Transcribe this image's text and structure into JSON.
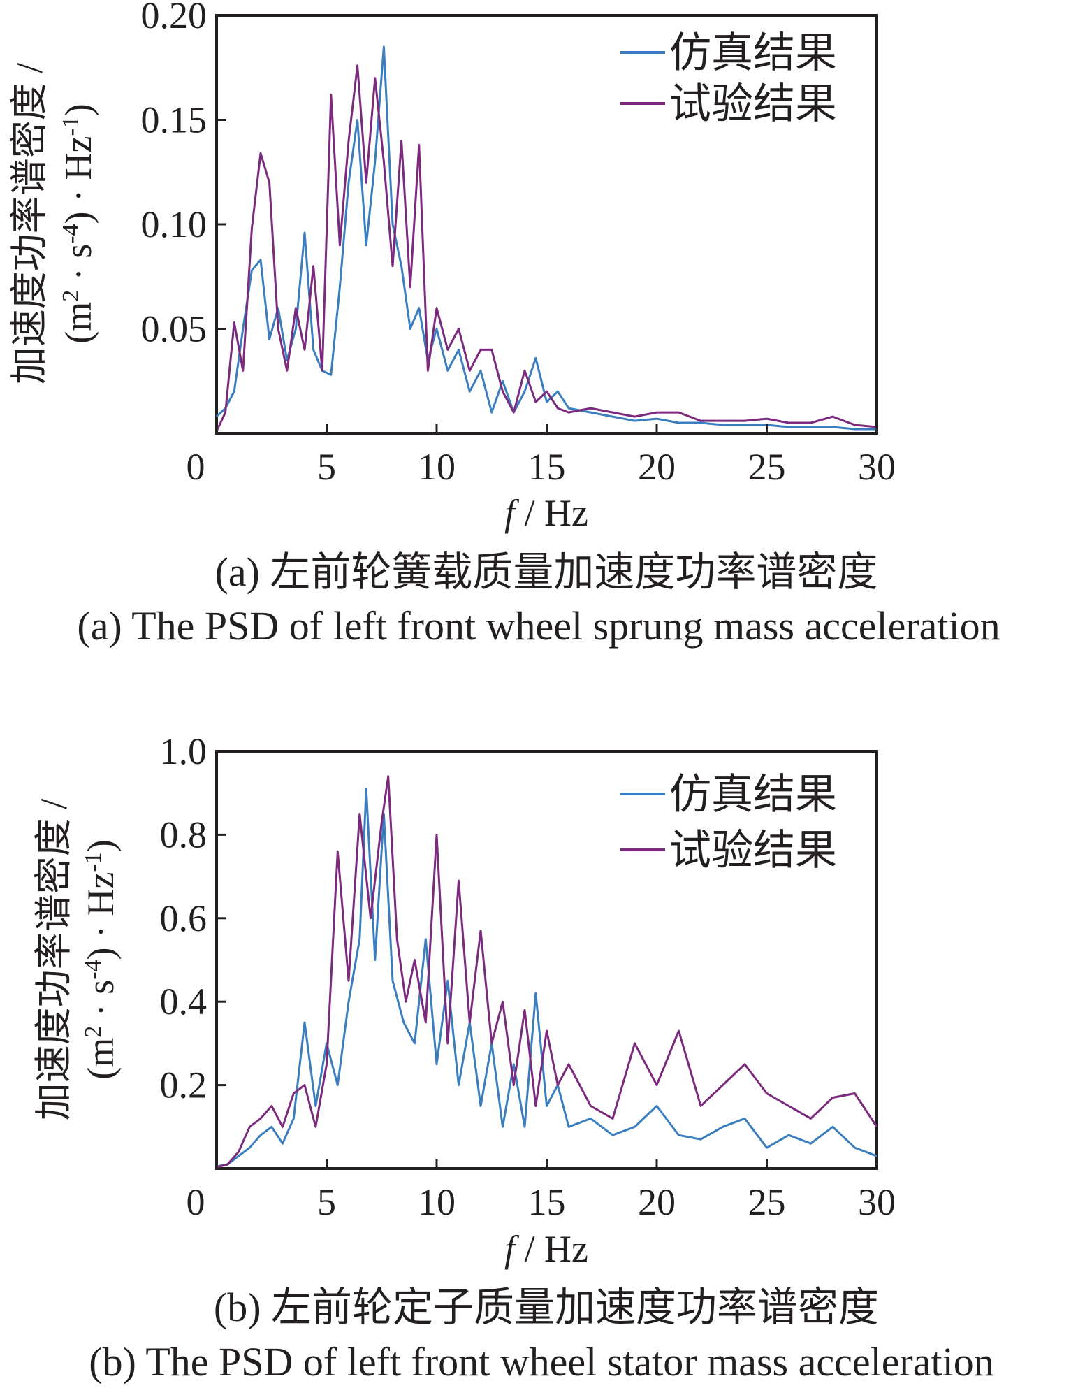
{
  "colors": {
    "simulation": "#3a7ebf",
    "experiment": "#7b2a7e",
    "axis": "#231f20"
  },
  "chart_data": [
    {
      "type": "line",
      "panel": "a",
      "xlabel_italic": "f",
      "xlabel_rest": " / Hz",
      "ylabel_line1": "加速度功率谱密度 /",
      "ylabel_line2_open": "(m",
      "ylabel_line2_exp1": "2",
      "ylabel_line2_mid": " · s",
      "ylabel_line2_exp2": "-4",
      "ylabel_line2_close": ") · Hz",
      "ylabel_line2_exp3": "-1",
      "ylabel_line2_end": ")",
      "xlim": [
        0,
        30
      ],
      "ylim": [
        0,
        0.2
      ],
      "xticks": [
        0,
        5,
        10,
        15,
        20,
        25,
        30
      ],
      "xtick_labels": [
        "0",
        "5",
        "10",
        "15",
        "20",
        "25",
        "30"
      ],
      "yticks": [
        0.05,
        0.1,
        0.15,
        0.2
      ],
      "ytick_labels": [
        "0.05",
        "0.10",
        "0.15",
        "0.20"
      ],
      "legend_position": "top-right",
      "caption_cn": "(a) 左前轮簧载质量加速度功率谱密度",
      "caption_en": "(a) The PSD of left front wheel sprung mass acceleration",
      "series": [
        {
          "name": "仿真结果",
          "color": "#3a7ebf",
          "x": [
            0,
            0.4,
            0.8,
            1.2,
            1.6,
            2.0,
            2.4,
            2.8,
            3.2,
            3.6,
            4.0,
            4.4,
            4.8,
            5.2,
            5.6,
            6.0,
            6.4,
            6.8,
            7.2,
            7.6,
            8.0,
            8.4,
            8.8,
            9.2,
            9.6,
            10.0,
            10.5,
            11.0,
            11.5,
            12.0,
            12.5,
            13.0,
            13.5,
            14.0,
            14.5,
            15.0,
            15.5,
            16.0,
            17.0,
            18.0,
            19.0,
            20.0,
            21.0,
            22.0,
            23.0,
            24.0,
            25.0,
            26.0,
            27.0,
            28.0,
            29.0,
            30.0
          ],
          "y": [
            0.008,
            0.012,
            0.02,
            0.05,
            0.078,
            0.083,
            0.045,
            0.06,
            0.035,
            0.05,
            0.096,
            0.04,
            0.03,
            0.028,
            0.07,
            0.12,
            0.15,
            0.09,
            0.13,
            0.185,
            0.1,
            0.08,
            0.05,
            0.06,
            0.035,
            0.05,
            0.03,
            0.04,
            0.02,
            0.03,
            0.01,
            0.025,
            0.01,
            0.02,
            0.036,
            0.015,
            0.02,
            0.012,
            0.01,
            0.008,
            0.006,
            0.007,
            0.005,
            0.005,
            0.004,
            0.004,
            0.004,
            0.003,
            0.003,
            0.003,
            0.002,
            0.002
          ]
        },
        {
          "name": "试验结果",
          "color": "#7b2a7e",
          "x": [
            0,
            0.4,
            0.8,
            1.2,
            1.6,
            2.0,
            2.4,
            2.8,
            3.2,
            3.6,
            4.0,
            4.4,
            4.8,
            5.2,
            5.6,
            6.0,
            6.4,
            6.8,
            7.2,
            7.6,
            8.0,
            8.4,
            8.8,
            9.2,
            9.6,
            10.0,
            10.5,
            11.0,
            11.5,
            12.0,
            12.5,
            13.0,
            13.5,
            14.0,
            14.5,
            15.0,
            15.5,
            16.0,
            17.0,
            18.0,
            19.0,
            20.0,
            21.0,
            22.0,
            23.0,
            24.0,
            25.0,
            26.0,
            27.0,
            28.0,
            29.0,
            30.0
          ],
          "y": [
            0.001,
            0.01,
            0.053,
            0.03,
            0.098,
            0.134,
            0.12,
            0.05,
            0.03,
            0.06,
            0.04,
            0.08,
            0.03,
            0.162,
            0.09,
            0.14,
            0.176,
            0.12,
            0.17,
            0.13,
            0.08,
            0.14,
            0.07,
            0.138,
            0.03,
            0.06,
            0.04,
            0.05,
            0.03,
            0.04,
            0.04,
            0.02,
            0.01,
            0.03,
            0.015,
            0.02,
            0.012,
            0.01,
            0.012,
            0.01,
            0.008,
            0.01,
            0.01,
            0.006,
            0.006,
            0.006,
            0.007,
            0.005,
            0.005,
            0.008,
            0.004,
            0.003
          ]
        }
      ]
    },
    {
      "type": "line",
      "panel": "b",
      "xlabel_italic": "f",
      "xlabel_rest": " / Hz",
      "ylabel_line1": "加速度功率谱密度 /",
      "ylabel_line2_open": "(m",
      "ylabel_line2_exp1": "2",
      "ylabel_line2_mid": " · s",
      "ylabel_line2_exp2": "-4",
      "ylabel_line2_close": ") · Hz",
      "ylabel_line2_exp3": "-1",
      "ylabel_line2_end": ")",
      "xlim": [
        0,
        30
      ],
      "ylim": [
        0,
        1.0
      ],
      "xticks": [
        0,
        5,
        10,
        15,
        20,
        25,
        30
      ],
      "xtick_labels": [
        "0",
        "5",
        "10",
        "15",
        "20",
        "25",
        "30"
      ],
      "yticks": [
        0.2,
        0.4,
        0.6,
        0.8,
        1.0
      ],
      "ytick_labels": [
        "0.2",
        "0.4",
        "0.6",
        "0.8",
        "1.0"
      ],
      "legend_position": "top-right",
      "caption_cn": "(b) 左前轮定子质量加速度功率谱密度",
      "caption_en": "(b) The PSD of left front wheel stator mass acceleration",
      "series": [
        {
          "name": "仿真结果",
          "color": "#3a7ebf",
          "x": [
            0,
            0.5,
            1.0,
            1.5,
            2.0,
            2.5,
            3.0,
            3.5,
            4.0,
            4.5,
            5.0,
            5.5,
            6.0,
            6.5,
            6.8,
            7.2,
            7.6,
            8.0,
            8.5,
            9.0,
            9.5,
            10.0,
            10.5,
            11.0,
            11.5,
            12.0,
            12.5,
            13.0,
            13.5,
            14.0,
            14.5,
            15.0,
            15.5,
            16.0,
            17.0,
            18.0,
            19.0,
            20.0,
            21.0,
            22.0,
            23.0,
            24.0,
            25.0,
            26.0,
            27.0,
            28.0,
            29.0,
            30.0
          ],
          "y": [
            0.005,
            0.01,
            0.03,
            0.05,
            0.08,
            0.1,
            0.06,
            0.12,
            0.35,
            0.15,
            0.3,
            0.2,
            0.4,
            0.55,
            0.91,
            0.5,
            0.85,
            0.45,
            0.35,
            0.3,
            0.55,
            0.25,
            0.45,
            0.2,
            0.35,
            0.15,
            0.3,
            0.1,
            0.25,
            0.1,
            0.42,
            0.15,
            0.2,
            0.1,
            0.12,
            0.08,
            0.1,
            0.15,
            0.08,
            0.07,
            0.1,
            0.12,
            0.05,
            0.08,
            0.06,
            0.1,
            0.05,
            0.03
          ]
        },
        {
          "name": "试验结果",
          "color": "#7b2a7e",
          "x": [
            0,
            0.5,
            1.0,
            1.5,
            2.0,
            2.5,
            3.0,
            3.5,
            4.0,
            4.5,
            5.0,
            5.5,
            6.0,
            6.5,
            7.0,
            7.5,
            7.8,
            8.2,
            8.6,
            9.0,
            9.5,
            10.0,
            10.5,
            11.0,
            11.5,
            12.0,
            12.5,
            13.0,
            13.5,
            14.0,
            14.5,
            15.0,
            15.5,
            16.0,
            17.0,
            18.0,
            19.0,
            20.0,
            21.0,
            22.0,
            23.0,
            24.0,
            25.0,
            26.0,
            27.0,
            28.0,
            29.0,
            30.0
          ],
          "y": [
            0.003,
            0.01,
            0.04,
            0.1,
            0.12,
            0.15,
            0.1,
            0.18,
            0.2,
            0.1,
            0.25,
            0.76,
            0.45,
            0.85,
            0.6,
            0.83,
            0.94,
            0.55,
            0.4,
            0.5,
            0.35,
            0.8,
            0.3,
            0.69,
            0.35,
            0.57,
            0.3,
            0.4,
            0.2,
            0.38,
            0.15,
            0.33,
            0.2,
            0.25,
            0.15,
            0.12,
            0.3,
            0.2,
            0.33,
            0.15,
            0.2,
            0.25,
            0.18,
            0.15,
            0.12,
            0.17,
            0.18,
            0.1
          ]
        }
      ]
    }
  ]
}
